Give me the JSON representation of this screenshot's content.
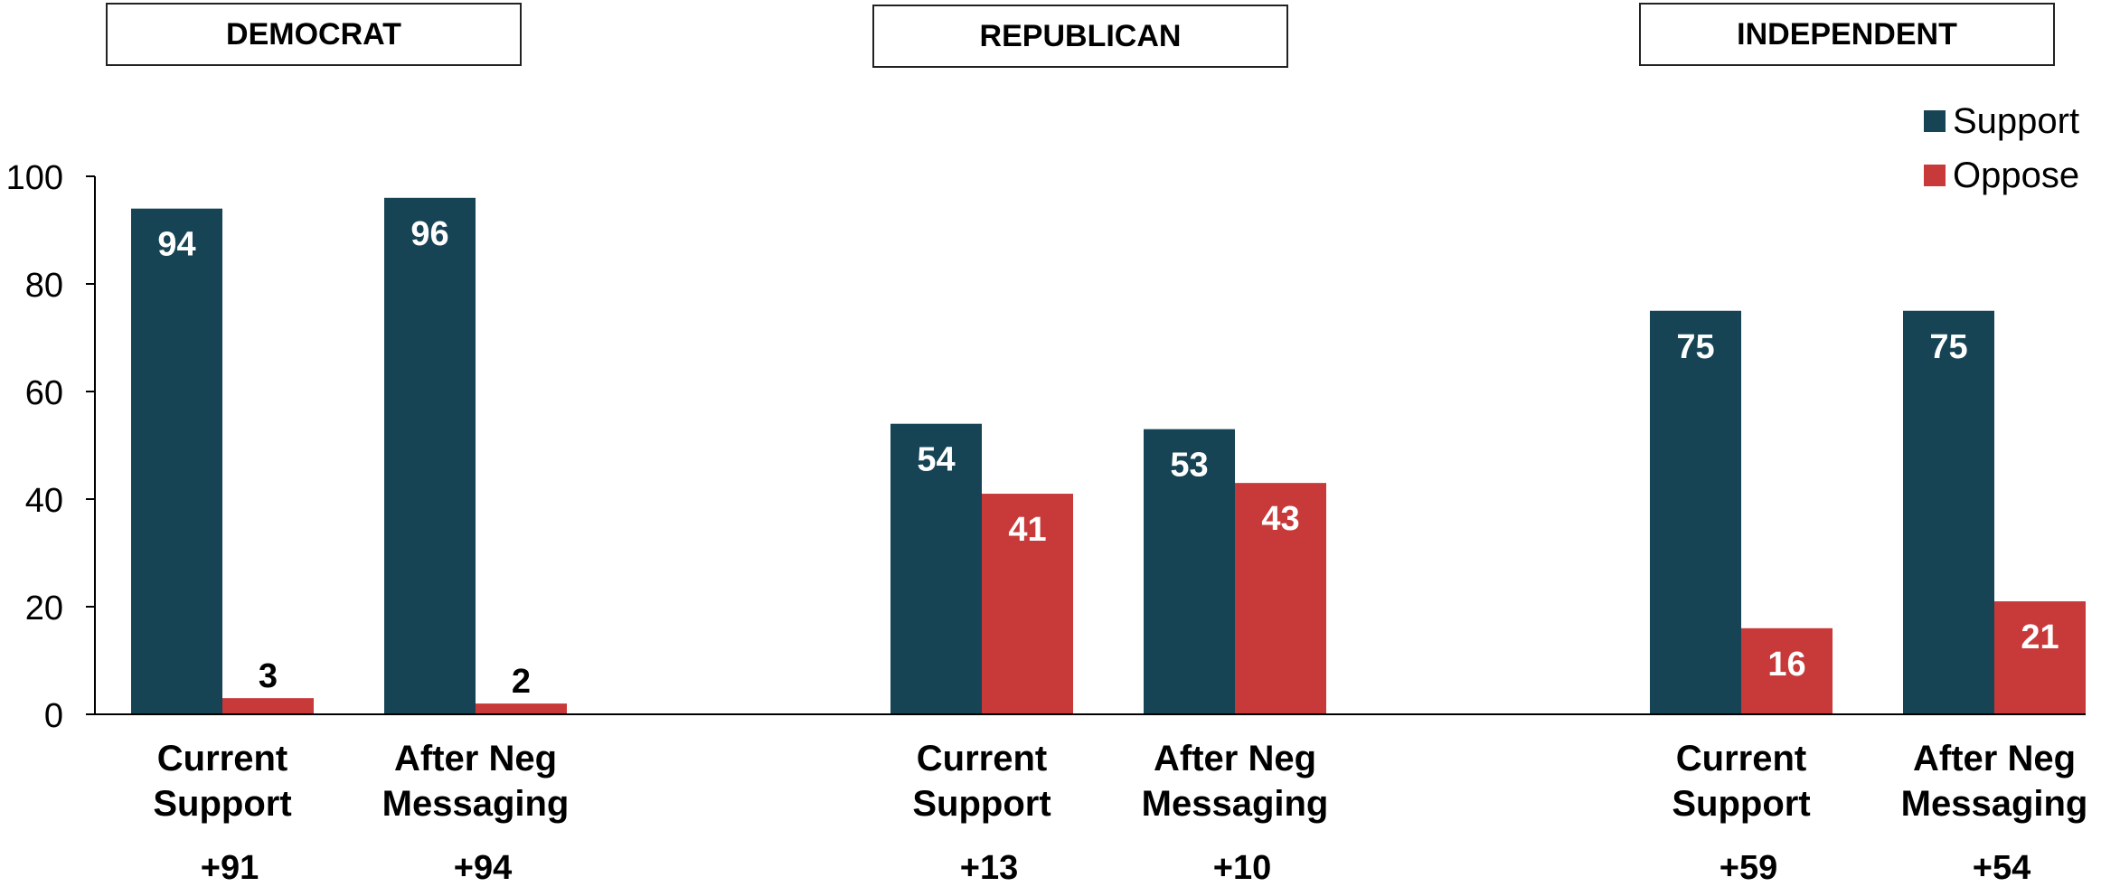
{
  "colors": {
    "support": "#164454",
    "oppose": "#c8393a"
  },
  "legend": {
    "support_label": "Support",
    "oppose_label": "Oppose"
  },
  "chart_data": {
    "type": "bar",
    "ylim": [
      0,
      100
    ],
    "yticks": [
      0,
      20,
      40,
      60,
      80,
      100
    ],
    "legend_position": "top-right",
    "groups": [
      {
        "title": "DEMOCRAT",
        "categories": [
          {
            "label_line1": "Current",
            "label_line2": "Support",
            "support": 94,
            "oppose": 3,
            "net": "+91"
          },
          {
            "label_line1": "After Neg",
            "label_line2": "Messaging",
            "support": 96,
            "oppose": 2,
            "net": "+94"
          }
        ]
      },
      {
        "title": "REPUBLICAN",
        "categories": [
          {
            "label_line1": "Current",
            "label_line2": "Support",
            "support": 54,
            "oppose": 41,
            "net": "+13"
          },
          {
            "label_line1": "After Neg",
            "label_line2": "Messaging",
            "support": 53,
            "oppose": 43,
            "net": "+10"
          }
        ]
      },
      {
        "title": "INDEPENDENT",
        "categories": [
          {
            "label_line1": "Current",
            "label_line2": "Support",
            "support": 75,
            "oppose": 16,
            "net": "+59"
          },
          {
            "label_line1": "After Neg",
            "label_line2": "Messaging",
            "support": 75,
            "oppose": 21,
            "net": "+54"
          }
        ]
      }
    ]
  }
}
